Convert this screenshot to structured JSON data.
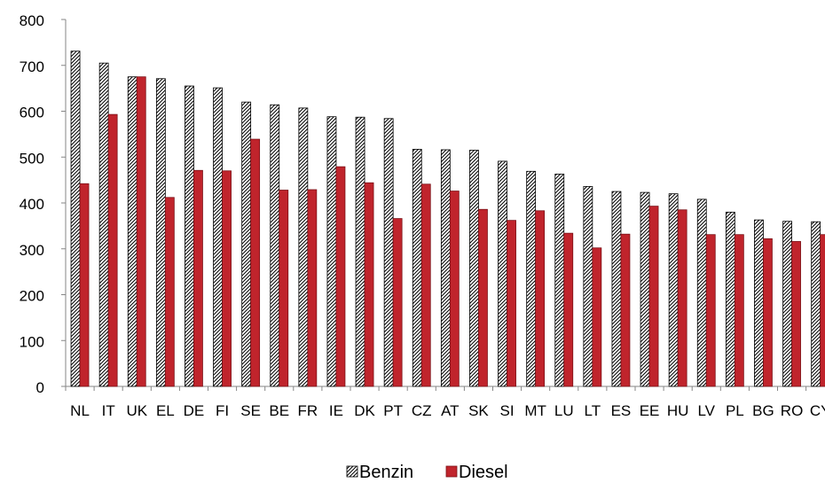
{
  "chart_data": {
    "type": "bar",
    "categories": [
      "NL",
      "IT",
      "UK",
      "EL",
      "DE",
      "FI",
      "SE",
      "BE",
      "FR",
      "IE",
      "DK",
      "PT",
      "CZ",
      "AT",
      "SK",
      "SI",
      "MT",
      "LU",
      "LT",
      "ES",
      "EE",
      "HU",
      "LV",
      "PL",
      "BG",
      "RO",
      "CY"
    ],
    "series": [
      {
        "name": "Benzin",
        "pattern": "diagonal-hatch",
        "color": "#000000",
        "values": [
          731,
          705,
          675,
          671,
          655,
          651,
          620,
          614,
          607,
          588,
          587,
          584,
          517,
          516,
          515,
          491,
          469,
          463,
          436,
          425,
          423,
          420,
          408,
          380,
          363,
          360,
          359
        ]
      },
      {
        "name": "Diesel",
        "color": "#c0242c",
        "values": [
          442,
          593,
          675,
          412,
          471,
          470,
          539,
          428,
          429,
          479,
          444,
          366,
          441,
          426,
          386,
          362,
          383,
          334,
          302,
          332,
          393,
          385,
          331,
          331,
          322,
          316,
          331
        ]
      }
    ],
    "ylim": [
      0,
      800
    ],
    "yticks": [
      0,
      100,
      200,
      300,
      400,
      500,
      600,
      700,
      800
    ],
    "xlabel": "",
    "ylabel": "",
    "grid": false,
    "legend": "bottom-center"
  }
}
